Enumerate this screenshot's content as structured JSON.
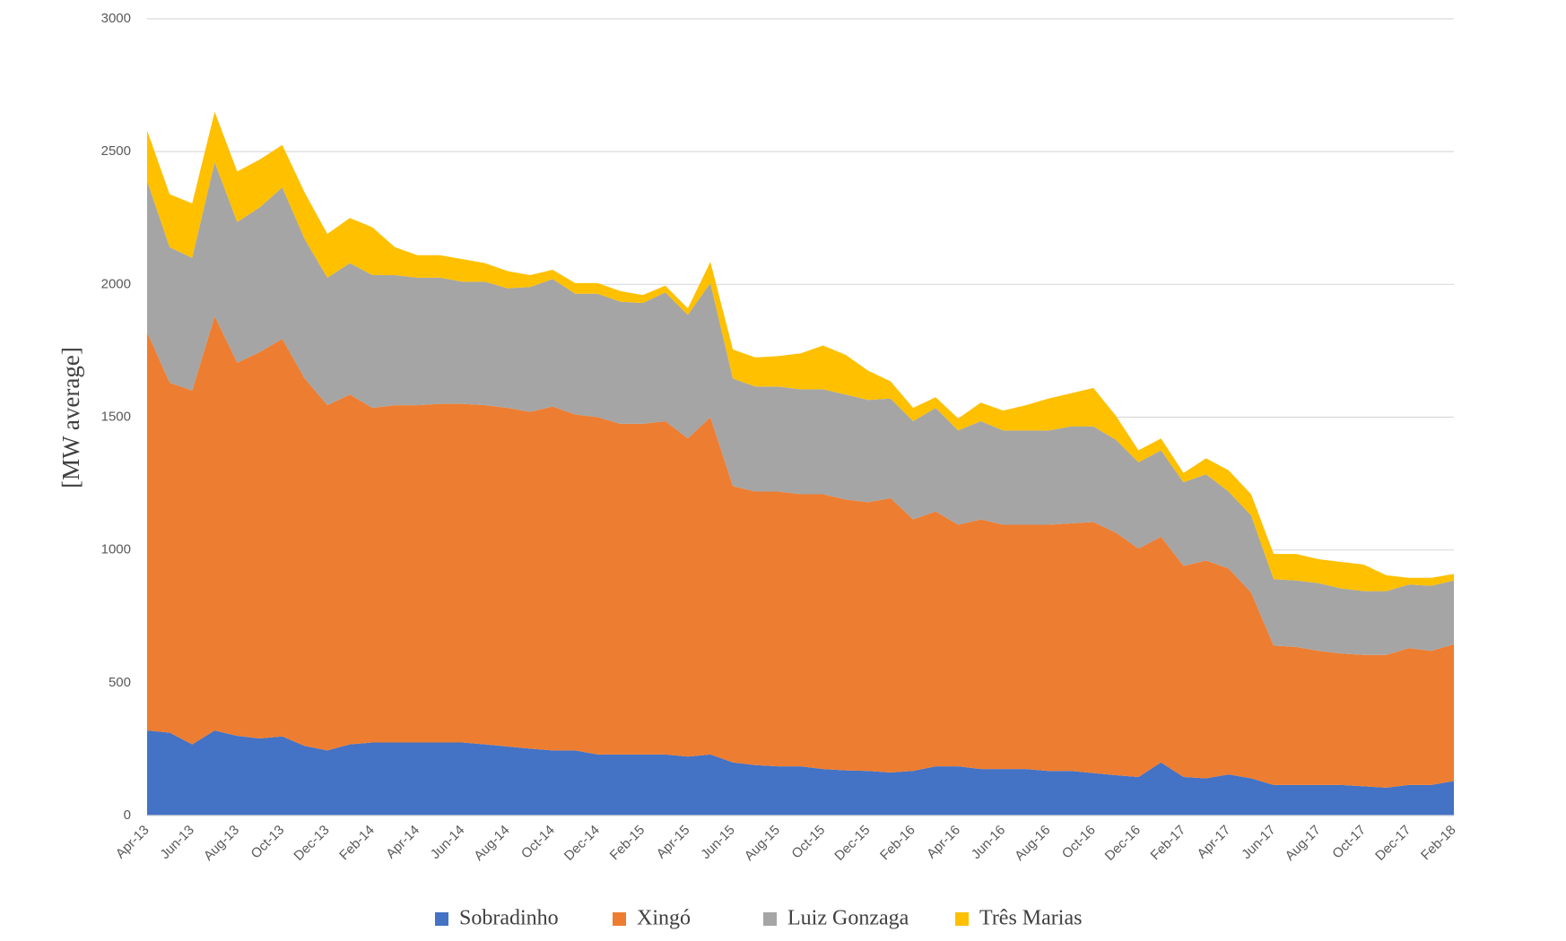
{
  "chart_data": {
    "type": "stacked_area",
    "y_label": "[MW average]",
    "categories": [
      "Apr-13",
      null,
      "Jun-13",
      null,
      "Aug-13",
      null,
      "Oct-13",
      null,
      "Dec-13",
      null,
      "Feb-14",
      null,
      "Apr-14",
      null,
      "Jun-14",
      null,
      "Aug-14",
      null,
      "Oct-14",
      null,
      "Dec-14",
      null,
      "Feb-15",
      null,
      "Apr-15",
      null,
      "Jun-15",
      null,
      "Aug-15",
      null,
      "Oct-15",
      null,
      "Dec-15",
      null,
      "Feb-16",
      null,
      "Apr-16",
      null,
      "Jun-16",
      null,
      "Aug-16",
      null,
      "Oct-16",
      null,
      "Dec-16",
      null,
      "Feb-17",
      null,
      "Apr-17",
      null,
      "Jun-17",
      null,
      "Aug-17",
      null,
      "Oct-17",
      null,
      "Dec-17",
      null,
      "Feb-18"
    ],
    "series": [
      {
        "name": "Sobradinho",
        "color": "#4472c4",
        "values": [
          320,
          312,
          268,
          320,
          300,
          290,
          298,
          262,
          245,
          268,
          275,
          275,
          275,
          275,
          275,
          268,
          260,
          252,
          245,
          245,
          230,
          230,
          230,
          230,
          222,
          230,
          200,
          190,
          185,
          185,
          175,
          170,
          168,
          162,
          168,
          185,
          185,
          175,
          175,
          175,
          168,
          168,
          160,
          152,
          145,
          200,
          145,
          140,
          155,
          140,
          115,
          115,
          115,
          115,
          110,
          105,
          115,
          115,
          130
        ]
      },
      {
        "name": "Xingó",
        "color": "#ed7d31",
        "values": [
          1500,
          1318,
          1332,
          1560,
          1405,
          1455,
          1497,
          1383,
          1300,
          1317,
          1260,
          1270,
          1270,
          1275,
          1275,
          1277,
          1275,
          1268,
          1295,
          1265,
          1270,
          1245,
          1245,
          1255,
          1198,
          1270,
          1040,
          1030,
          1035,
          1025,
          1035,
          1020,
          1012,
          1033,
          947,
          960,
          910,
          940,
          920,
          920,
          927,
          932,
          945,
          913,
          860,
          850,
          795,
          820,
          775,
          700,
          525,
          520,
          505,
          495,
          495,
          500,
          515,
          505,
          515
        ]
      },
      {
        "name": "Luiz Gonzaga",
        "color": "#a5a5a5",
        "values": [
          570,
          510,
          500,
          580,
          530,
          545,
          570,
          525,
          480,
          495,
          500,
          490,
          480,
          475,
          460,
          465,
          450,
          470,
          480,
          455,
          465,
          460,
          455,
          485,
          465,
          505,
          405,
          395,
          395,
          395,
          395,
          395,
          385,
          375,
          370,
          390,
          355,
          370,
          355,
          355,
          355,
          365,
          360,
          350,
          325,
          325,
          315,
          325,
          290,
          290,
          250,
          250,
          255,
          245,
          240,
          240,
          240,
          245,
          240
        ]
      },
      {
        "name": "Três Marias",
        "color": "#ffc000",
        "values": [
          190,
          200,
          205,
          190,
          190,
          180,
          160,
          175,
          165,
          170,
          180,
          105,
          85,
          85,
          85,
          70,
          65,
          45,
          35,
          40,
          40,
          40,
          30,
          25,
          25,
          80,
          110,
          110,
          115,
          135,
          165,
          150,
          110,
          65,
          50,
          40,
          45,
          70,
          75,
          95,
          120,
          125,
          145,
          90,
          45,
          45,
          35,
          60,
          80,
          80,
          95,
          100,
          90,
          100,
          100,
          60,
          25,
          30,
          25
        ]
      }
    ],
    "ylim": [
      0,
      3000
    ],
    "yticks": [
      0,
      500,
      1000,
      1500,
      2000,
      2500,
      3000
    ],
    "grid": true,
    "legend": "bottom"
  }
}
